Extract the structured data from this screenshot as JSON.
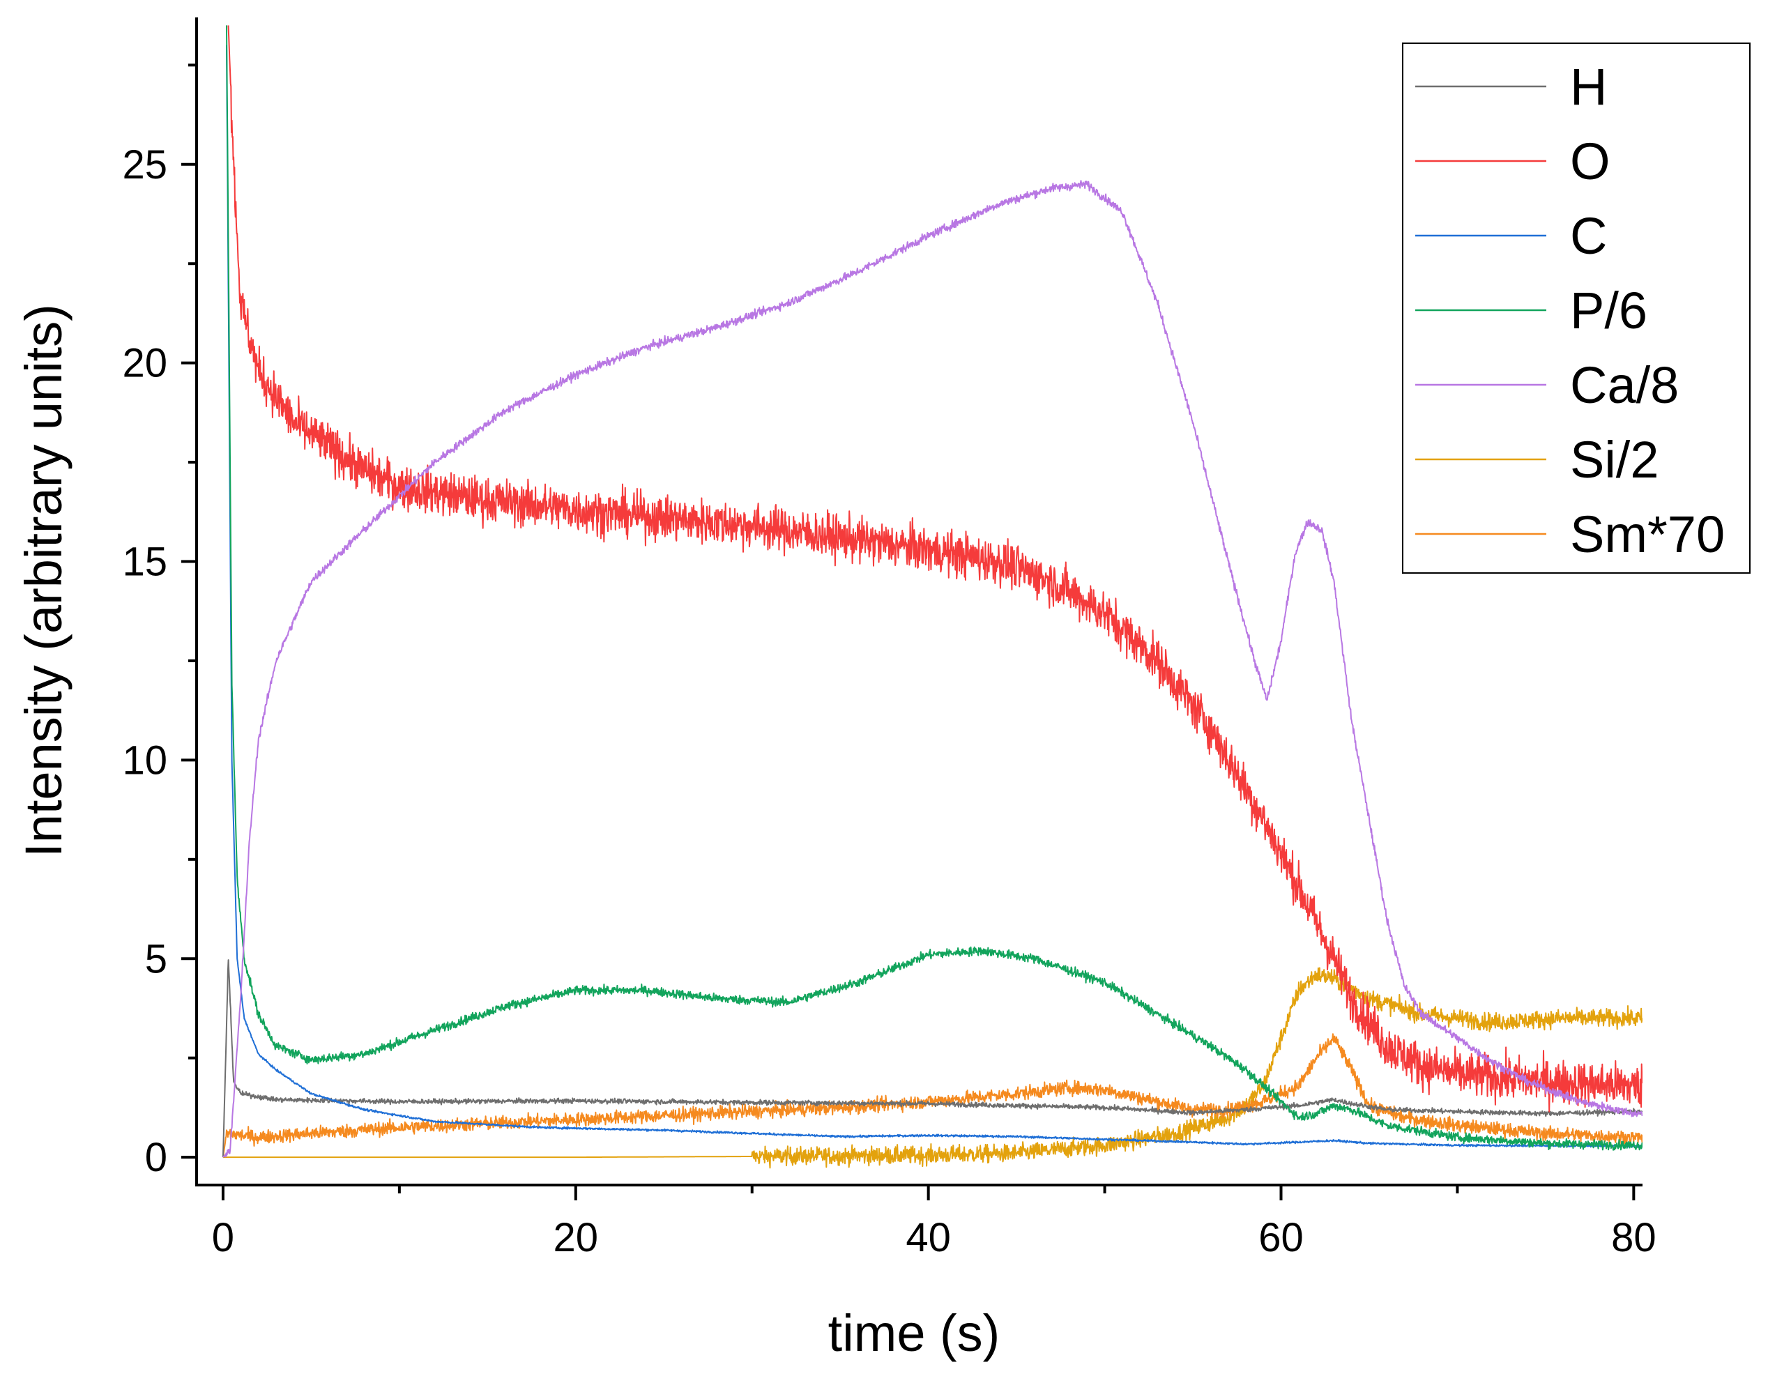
{
  "chart_data": {
    "type": "line",
    "title": "",
    "xlabel": "time (s)",
    "ylabel": "Intensity (arbitrary units)",
    "xlim": [
      -1.5,
      80.5
    ],
    "ylim": [
      -0.7,
      28.7
    ],
    "xticks": [
      0,
      20,
      40,
      60,
      80
    ],
    "xticks_minor": [
      10,
      30,
      50,
      70
    ],
    "yticks": [
      0,
      5,
      10,
      15,
      20,
      25
    ],
    "grid": false,
    "legend_position": "top-right",
    "series": [
      {
        "name": "H",
        "color": "#6e6e6e",
        "noise": 0.06,
        "points": [
          [
            0,
            0
          ],
          [
            0.3,
            5
          ],
          [
            0.6,
            1.9
          ],
          [
            1,
            1.6
          ],
          [
            3,
            1.45
          ],
          [
            10,
            1.4
          ],
          [
            20,
            1.42
          ],
          [
            30,
            1.38
          ],
          [
            40,
            1.35
          ],
          [
            50,
            1.25
          ],
          [
            55,
            1.12
          ],
          [
            58,
            1.2
          ],
          [
            61,
            1.3
          ],
          [
            63,
            1.45
          ],
          [
            64,
            1.35
          ],
          [
            66,
            1.2
          ],
          [
            70,
            1.15
          ],
          [
            75,
            1.1
          ],
          [
            80,
            1.15
          ]
        ]
      },
      {
        "name": "O",
        "color": "#f53b3b",
        "noise": 0.55,
        "points": [
          [
            0.3,
            28.5
          ],
          [
            0.6,
            25
          ],
          [
            1,
            21.5
          ],
          [
            2,
            19.8
          ],
          [
            4,
            18.5
          ],
          [
            6,
            17.9
          ],
          [
            8,
            17.3
          ],
          [
            10,
            16.9
          ],
          [
            14,
            16.6
          ],
          [
            20,
            16.3
          ],
          [
            25,
            16.1
          ],
          [
            30,
            15.9
          ],
          [
            35,
            15.6
          ],
          [
            40,
            15.3
          ],
          [
            44,
            15.0
          ],
          [
            47,
            14.5
          ],
          [
            50,
            13.7
          ],
          [
            53,
            12.5
          ],
          [
            56,
            10.8
          ],
          [
            59,
            8.5
          ],
          [
            61,
            6.8
          ],
          [
            63,
            5.0
          ],
          [
            64,
            4.0
          ],
          [
            66,
            2.8
          ],
          [
            68,
            2.3
          ],
          [
            70,
            2.1
          ],
          [
            75,
            1.9
          ],
          [
            80,
            1.8
          ]
        ]
      },
      {
        "name": "C",
        "color": "#1f6fd6",
        "noise": 0.025,
        "points": [
          [
            0.2,
            28
          ],
          [
            0.5,
            10
          ],
          [
            0.8,
            5.0
          ],
          [
            1.2,
            3.5
          ],
          [
            2,
            2.6
          ],
          [
            3,
            2.2
          ],
          [
            5,
            1.6
          ],
          [
            8,
            1.2
          ],
          [
            12,
            0.9
          ],
          [
            18,
            0.75
          ],
          [
            25,
            0.68
          ],
          [
            30,
            0.6
          ],
          [
            35,
            0.52
          ],
          [
            40,
            0.55
          ],
          [
            45,
            0.52
          ],
          [
            50,
            0.45
          ],
          [
            55,
            0.38
          ],
          [
            58,
            0.33
          ],
          [
            61,
            0.38
          ],
          [
            63,
            0.42
          ],
          [
            65,
            0.35
          ],
          [
            70,
            0.3
          ],
          [
            80,
            0.28
          ]
        ]
      },
      {
        "name": "P/6",
        "color": "#12a45c",
        "noise": 0.11,
        "points": [
          [
            0.2,
            28.5
          ],
          [
            0.5,
            12
          ],
          [
            0.8,
            7.0
          ],
          [
            1.2,
            5.0
          ],
          [
            2,
            3.6
          ],
          [
            3,
            2.8
          ],
          [
            5,
            2.45
          ],
          [
            8,
            2.6
          ],
          [
            12,
            3.2
          ],
          [
            16,
            3.8
          ],
          [
            20,
            4.2
          ],
          [
            24,
            4.2
          ],
          [
            28,
            4.0
          ],
          [
            32,
            3.9
          ],
          [
            36,
            4.4
          ],
          [
            40,
            5.1
          ],
          [
            43,
            5.2
          ],
          [
            46,
            5.0
          ],
          [
            50,
            4.4
          ],
          [
            53,
            3.6
          ],
          [
            56,
            2.8
          ],
          [
            58,
            2.2
          ],
          [
            60,
            1.4
          ],
          [
            61,
            1.0
          ],
          [
            62,
            1.1
          ],
          [
            63,
            1.3
          ],
          [
            64,
            1.2
          ],
          [
            66,
            0.8
          ],
          [
            70,
            0.5
          ],
          [
            75,
            0.35
          ],
          [
            80,
            0.3
          ]
        ]
      },
      {
        "name": "Ca/8",
        "color": "#b877e3",
        "noise": 0.1,
        "points": [
          [
            0,
            0
          ],
          [
            0.4,
            0.2
          ],
          [
            1,
            4
          ],
          [
            1.5,
            8
          ],
          [
            2,
            10.5
          ],
          [
            3,
            12.5
          ],
          [
            5,
            14.5
          ],
          [
            8,
            15.8
          ],
          [
            12,
            17.5
          ],
          [
            16,
            18.8
          ],
          [
            20,
            19.7
          ],
          [
            24,
            20.4
          ],
          [
            28,
            20.9
          ],
          [
            32,
            21.5
          ],
          [
            36,
            22.3
          ],
          [
            40,
            23.2
          ],
          [
            44,
            24.0
          ],
          [
            47,
            24.4
          ],
          [
            49,
            24.5
          ],
          [
            51,
            23.8
          ],
          [
            53,
            21.5
          ],
          [
            55,
            18.5
          ],
          [
            57,
            15.0
          ],
          [
            58.5,
            12.5
          ],
          [
            59.2,
            11.5
          ],
          [
            60,
            13.0
          ],
          [
            60.8,
            15.2
          ],
          [
            61.5,
            16.0
          ],
          [
            62.3,
            15.8
          ],
          [
            63,
            14.5
          ],
          [
            64,
            11.0
          ],
          [
            65,
            8.5
          ],
          [
            66,
            6.0
          ],
          [
            67,
            4.3
          ],
          [
            68,
            3.6
          ],
          [
            69,
            3.3
          ],
          [
            70,
            3.0
          ],
          [
            72,
            2.4
          ],
          [
            74,
            1.9
          ],
          [
            77,
            1.4
          ],
          [
            80,
            1.1
          ]
        ]
      },
      {
        "name": "Si/2",
        "color": "#e3a20d",
        "noise": 0.22,
        "points": [
          [
            0,
            0
          ],
          [
            20,
            0
          ],
          [
            30,
            0.02
          ],
          [
            40,
            0.05
          ],
          [
            45,
            0.1
          ],
          [
            50,
            0.3
          ],
          [
            54,
            0.6
          ],
          [
            57,
            1.0
          ],
          [
            58,
            1.3
          ],
          [
            59,
            1.8
          ],
          [
            60,
            3.0
          ],
          [
            61,
            4.2
          ],
          [
            62,
            4.6
          ],
          [
            63,
            4.5
          ],
          [
            65,
            4.0
          ],
          [
            68,
            3.6
          ],
          [
            72,
            3.4
          ],
          [
            76,
            3.5
          ],
          [
            80,
            3.5
          ]
        ]
      },
      {
        "name": "Sm*70",
        "color": "#f58a1f",
        "noise": 0.17,
        "points": [
          [
            0,
            0
          ],
          [
            0.2,
            0.6
          ],
          [
            2,
            0.5
          ],
          [
            5,
            0.6
          ],
          [
            10,
            0.75
          ],
          [
            15,
            0.85
          ],
          [
            20,
            0.95
          ],
          [
            25,
            1.05
          ],
          [
            30,
            1.15
          ],
          [
            35,
            1.25
          ],
          [
            40,
            1.4
          ],
          [
            45,
            1.6
          ],
          [
            48,
            1.75
          ],
          [
            50,
            1.7
          ],
          [
            52,
            1.5
          ],
          [
            55,
            1.2
          ],
          [
            57,
            1.2
          ],
          [
            59,
            1.4
          ],
          [
            61,
            1.8
          ],
          [
            62,
            2.5
          ],
          [
            63,
            3.0
          ],
          [
            64,
            2.2
          ],
          [
            65,
            1.3
          ],
          [
            67,
            1.0
          ],
          [
            70,
            0.8
          ],
          [
            75,
            0.6
          ],
          [
            80,
            0.5
          ]
        ]
      }
    ]
  }
}
